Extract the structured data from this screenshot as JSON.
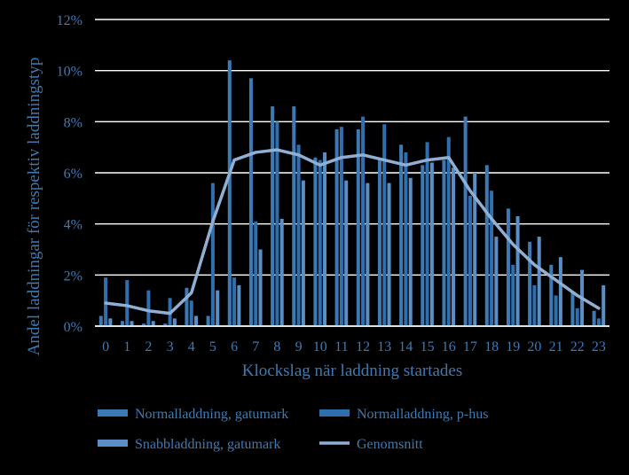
{
  "chart_data": {
    "type": "bar",
    "ylabel": "Andel laddningar för respektiv laddningstyp",
    "xlabel": "Klockslag när laddning startades",
    "ylim": [
      0,
      12
    ],
    "yticks": [
      0,
      2,
      4,
      6,
      8,
      10,
      12
    ],
    "ytick_labels": [
      "0%",
      "2%",
      "4%",
      "6%",
      "8%",
      "10%",
      "12%"
    ],
    "categories": [
      "0",
      "1",
      "2",
      "3",
      "4",
      "5",
      "6",
      "7",
      "8",
      "9",
      "10",
      "11",
      "12",
      "13",
      "14",
      "15",
      "16",
      "17",
      "18",
      "19",
      "20",
      "21",
      "22",
      "23"
    ],
    "grid": true,
    "legend_position": "bottom",
    "series": [
      {
        "name": "Normalladdning, gatumark",
        "kind": "bar",
        "color": "#3d7ab5",
        "values": [
          0.4,
          0.2,
          0.1,
          0.1,
          1.5,
          0.4,
          10.4,
          9.7,
          8.6,
          8.6,
          6.6,
          7.7,
          7.7,
          6.5,
          7.1,
          6.3,
          6.5,
          8.2,
          6.3,
          4.6,
          3.3,
          2.4,
          1.3,
          0.6
        ]
      },
      {
        "name": "Normalladdning, p-hus",
        "kind": "bar",
        "color": "#2f6fae",
        "values": [
          1.9,
          1.8,
          1.4,
          1.1,
          1.0,
          5.6,
          1.9,
          4.1,
          8.0,
          7.1,
          6.5,
          7.8,
          8.2,
          7.9,
          6.8,
          7.2,
          7.4,
          5.1,
          5.3,
          2.4,
          1.6,
          1.2,
          0.7,
          0.3
        ]
      },
      {
        "name": "Snabbladdning, gatumark",
        "kind": "bar",
        "color": "#5b8ec4",
        "values": [
          0.3,
          0.2,
          0.2,
          0.3,
          0.4,
          1.4,
          1.6,
          3.0,
          4.2,
          5.7,
          6.8,
          5.7,
          5.6,
          5.6,
          5.8,
          6.4,
          6.2,
          6.0,
          3.5,
          4.3,
          3.5,
          2.7,
          2.2,
          1.6
        ]
      },
      {
        "name": "Genomsnitt",
        "kind": "line",
        "color": "#8fb0d4",
        "values": [
          0.9,
          0.8,
          0.6,
          0.5,
          1.3,
          4.1,
          6.5,
          6.8,
          6.9,
          6.7,
          6.3,
          6.6,
          6.7,
          6.5,
          6.3,
          6.5,
          6.6,
          5.3,
          4.2,
          3.2,
          2.4,
          1.8,
          1.2,
          0.7
        ]
      }
    ]
  }
}
